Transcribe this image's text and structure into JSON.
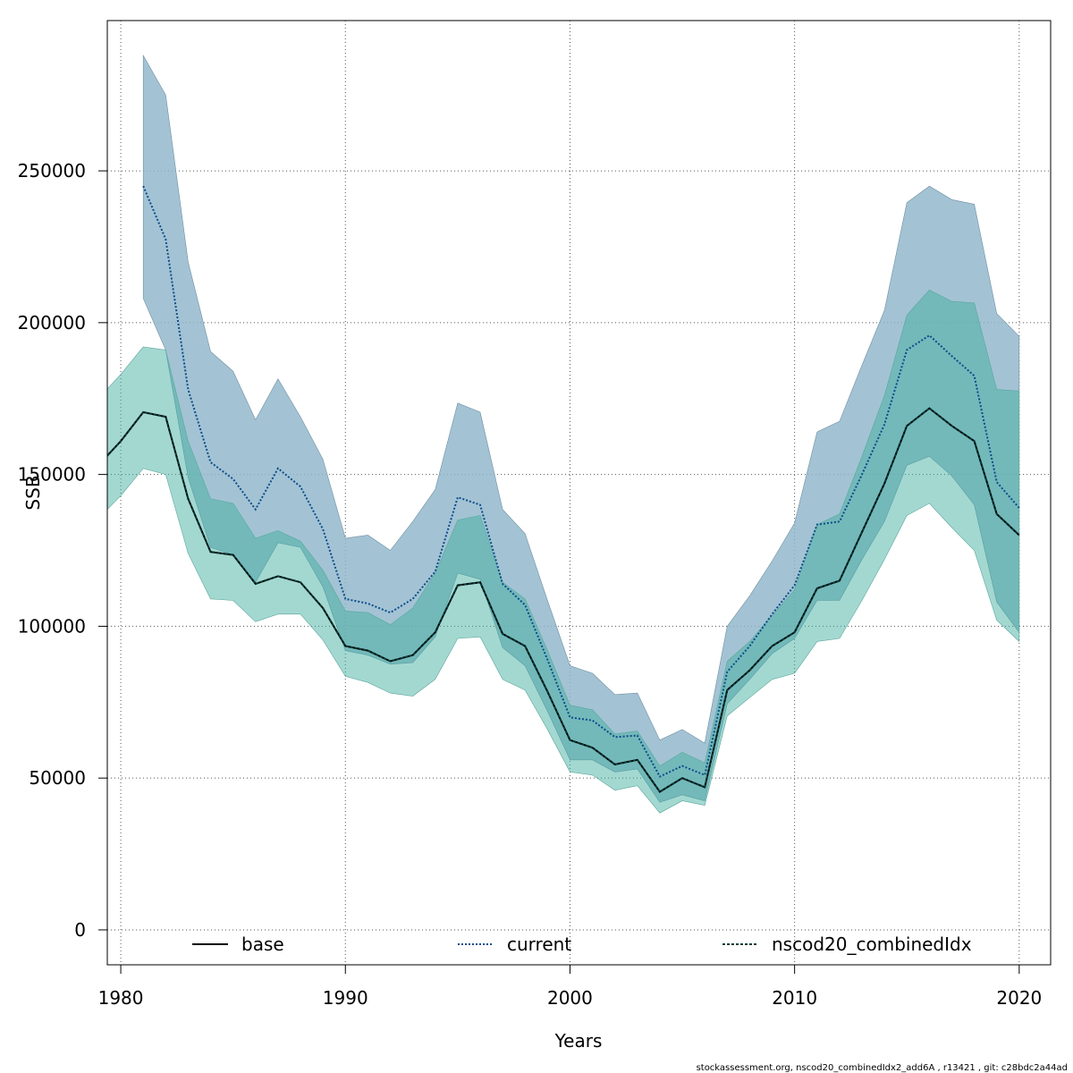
{
  "chart_data": {
    "type": "line",
    "xlabel": "Years",
    "ylabel": "SSB",
    "xlim": [
      1979.4,
      2021.4
    ],
    "ylim": [
      -11500,
      299500
    ],
    "x_ticks": [
      1980,
      1990,
      2000,
      2010,
      2020
    ],
    "y_ticks": [
      0,
      50000,
      100000,
      150000,
      200000,
      250000
    ],
    "x_tick_labels": [
      "1980",
      "1990",
      "2000",
      "2010",
      "2020"
    ],
    "y_tick_labels": [
      "0",
      "50000",
      "100000",
      "150000",
      "200000",
      "250000"
    ],
    "grid": true,
    "legend_position": "bottom",
    "series": [
      {
        "name": "base",
        "style": "solid",
        "color": "#000000",
        "x": [
          1979,
          1980,
          1981,
          1982,
          1983,
          1984,
          1985,
          1986,
          1987,
          1988,
          1989,
          1990,
          1991,
          1992,
          1993,
          1994,
          1995,
          1996,
          1997,
          1998,
          1999,
          2000,
          2001,
          2002,
          2003,
          2004,
          2005,
          2006,
          2007,
          2008,
          2009,
          2010,
          2011,
          2012,
          2013,
          2014,
          2015,
          2016,
          2017,
          2018,
          2019,
          2020
        ],
        "values": [
          153000,
          161000,
          170500,
          169000,
          142000,
          124500,
          123500,
          114000,
          116500,
          114500,
          106000,
          93500,
          92000,
          88500,
          90500,
          98000,
          113500,
          114500,
          97500,
          93500,
          78500,
          62500,
          60000,
          54500,
          56000,
          45500,
          50000,
          47000,
          79000,
          85500,
          93500,
          98000,
          112500,
          115000,
          131000,
          147000,
          166000,
          171800,
          166000,
          161000,
          137000,
          130000
        ],
        "lower": [
          135500,
          143000,
          152000,
          150000,
          124000,
          109000,
          108500,
          101500,
          104000,
          104000,
          95500,
          83500,
          81500,
          78000,
          77000,
          82500,
          96000,
          96500,
          82500,
          79000,
          66000,
          52000,
          51000,
          46000,
          47500,
          38500,
          42500,
          41000,
          70500,
          76500,
          82500,
          84500,
          95000,
          96000,
          108500,
          122000,
          136500,
          140500,
          132500,
          125000,
          102000,
          95000
        ],
        "upper": [
          175000,
          183000,
          192000,
          191000,
          161000,
          142000,
          140500,
          129000,
          131500,
          128000,
          118500,
          105000,
          104500,
          100500,
          106000,
          117500,
          135000,
          136500,
          114500,
          109000,
          92000,
          74000,
          72500,
          64500,
          65500,
          54000,
          58500,
          55000,
          88500,
          95000,
          103500,
          112000,
          133500,
          137000,
          156000,
          176000,
          202500,
          210800,
          207000,
          206500,
          178000,
          177500
        ]
      },
      {
        "name": "current",
        "style": "dotted",
        "color": "#0b4c8a",
        "x": [
          1981,
          1982,
          1983,
          1984,
          1985,
          1986,
          1987,
          1988,
          1989,
          1990,
          1991,
          1992,
          1993,
          1994,
          1995,
          1996,
          1997,
          1998,
          1999,
          2000,
          2001,
          2002,
          2003,
          2004,
          2005,
          2006,
          2007,
          2008,
          2009,
          2010,
          2011,
          2012,
          2013,
          2014,
          2015,
          2016,
          2017,
          2018,
          2019,
          2020
        ],
        "values": [
          245000,
          227500,
          178000,
          154000,
          148500,
          138500,
          152000,
          146000,
          132000,
          109000,
          107500,
          104500,
          109000,
          118000,
          142500,
          140000,
          114000,
          107000,
          89000,
          70000,
          69000,
          63500,
          64000,
          50500,
          54000,
          51000,
          85000,
          93500,
          104000,
          113500,
          133500,
          134500,
          150000,
          166500,
          191000,
          195800,
          189000,
          182500,
          147500,
          139000
        ],
        "lower": [
          208000,
          191000,
          149000,
          126000,
          123500,
          114500,
          127500,
          126000,
          113000,
          92000,
          90500,
          87500,
          88000,
          96500,
          117500,
          115500,
          93000,
          87000,
          72000,
          56000,
          56000,
          52000,
          53000,
          42000,
          44500,
          42500,
          74500,
          82500,
          91000,
          96000,
          108500,
          108500,
          122000,
          134500,
          153000,
          156000,
          149500,
          140000,
          108000,
          98000
        ],
        "upper": [
          288000,
          275000,
          220000,
          190500,
          184000,
          168000,
          181500,
          169000,
          155000,
          129000,
          130000,
          125000,
          134500,
          145000,
          173500,
          170500,
          138500,
          130500,
          108500,
          87000,
          84500,
          77500,
          78000,
          62500,
          66000,
          61500,
          100000,
          110000,
          121500,
          134000,
          164000,
          167500,
          186000,
          204000,
          239500,
          245000,
          240500,
          239000,
          203000,
          195500
        ]
      },
      {
        "name": "nscod20_combinedIdx",
        "style": "dashed",
        "color": "#0b3d3a",
        "x": [
          1979,
          1980,
          1981,
          1982,
          1983,
          1984,
          1985,
          1986,
          1987,
          1988,
          1989,
          1990,
          1991,
          1992,
          1993,
          1994,
          1995,
          1996,
          1997,
          1998,
          1999,
          2000,
          2001,
          2002,
          2003,
          2004,
          2005,
          2006,
          2007,
          2008,
          2009,
          2010,
          2011,
          2012,
          2013,
          2014,
          2015,
          2016,
          2017,
          2018,
          2019,
          2020
        ],
        "values": [
          153000,
          161000,
          170500,
          169000,
          142000,
          124500,
          123500,
          114000,
          116500,
          114500,
          106000,
          93500,
          92000,
          88500,
          90500,
          98000,
          113500,
          114500,
          97500,
          93500,
          78500,
          62500,
          60000,
          54500,
          56000,
          45500,
          50000,
          47000,
          79000,
          85500,
          93500,
          98000,
          112500,
          115000,
          131000,
          147000,
          166000,
          171800,
          166000,
          161000,
          137000,
          130000
        ]
      }
    ],
    "legend": [
      "base",
      "current",
      "nscod20_combinedIdx"
    ],
    "colors": {
      "current_band": "#8fb6cb",
      "base_band": "#8fd0c4",
      "overlap_band": "#6fb2b0"
    }
  },
  "footer": {
    "text": "stockassessment.org, nscod20_combinedIdx2_add6A , r13421 , git: c28bdc2a44ad"
  }
}
